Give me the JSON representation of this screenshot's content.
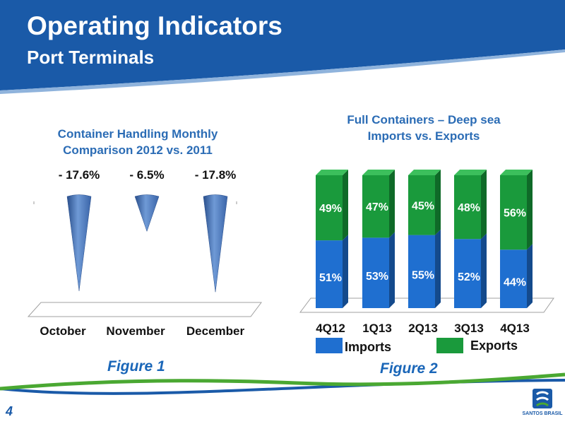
{
  "header": {
    "title": "Operating Indicators",
    "subtitle": "Port Terminals"
  },
  "colors": {
    "brand_blue": "#1a5aa8",
    "title_blue": "#2b6cb5",
    "caption_blue": "#1a66b8",
    "imports": "#1f6fd0",
    "exports": "#1a9a3c",
    "footer_green": "#4aa832"
  },
  "figure1": {
    "title_line1": "Container Handling Monthly",
    "title_line2": "Comparison 2012 vs. 2011",
    "caption": "Figure 1"
  },
  "figure2": {
    "title_line1": "Full Containers – Deep sea",
    "title_line2": "Imports vs. Exports",
    "caption": "Figure 2"
  },
  "chart_data": [
    {
      "type": "bar",
      "title": "Container Handling Monthly Comparison 2012 vs. 2011",
      "categories": [
        "October",
        "November",
        "December"
      ],
      "values": [
        -17.6,
        -6.5,
        -17.8
      ],
      "labels": [
        "- 17.6%",
        "- 6.5%",
        "- 17.8%"
      ],
      "unit": "%",
      "ylim": [
        -20,
        0
      ]
    },
    {
      "type": "bar",
      "stacked": true,
      "title": "Full Containers – Deep sea Imports vs. Exports",
      "categories": [
        "4Q12",
        "1Q13",
        "2Q13",
        "3Q13",
        "4Q13"
      ],
      "series": [
        {
          "name": "Imports",
          "values": [
            51,
            53,
            55,
            52,
            44
          ],
          "labels": [
            "51%",
            "53%",
            "55%",
            "52%",
            "44%"
          ],
          "color": "#1f6fd0"
        },
        {
          "name": "Exports",
          "values": [
            49,
            47,
            45,
            48,
            56
          ],
          "labels": [
            "49%",
            "47%",
            "45%",
            "48%",
            "56%"
          ],
          "color": "#1a9a3c"
        }
      ],
      "unit": "%",
      "ylim": [
        0,
        100
      ],
      "legend": "bottom"
    }
  ],
  "footer": {
    "page_number": "4",
    "logo_text": "SANTOS BRASIL"
  }
}
